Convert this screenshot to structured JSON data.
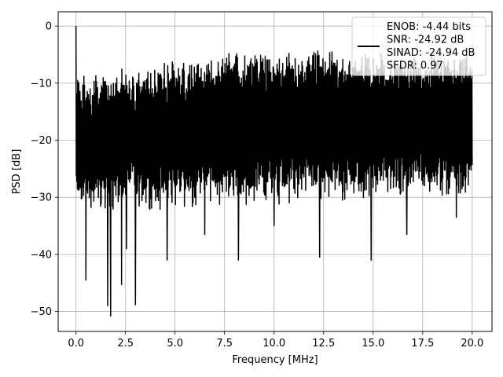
{
  "chart_data": {
    "type": "line",
    "title": "",
    "xlabel": "Frequency [MHz]",
    "ylabel": "PSD [dB]",
    "xlim": [
      -0.9,
      21.0
    ],
    "ylim": [
      -53.5,
      2.5
    ],
    "grid": true,
    "legend_position": "top-right",
    "xticks": [
      0.0,
      2.5,
      5.0,
      7.5,
      10.0,
      12.5,
      15.0,
      17.5,
      20.0
    ],
    "xtick_labels": [
      "0.0",
      "2.5",
      "5.0",
      "7.5",
      "10.0",
      "12.5",
      "15.0",
      "17.5",
      "20.0"
    ],
    "yticks": [
      0,
      -10,
      -20,
      -30,
      -40,
      -50
    ],
    "ytick_labels": [
      "0",
      "−10",
      "−20",
      "−30",
      "−40",
      "−50"
    ],
    "legend": {
      "lines": [
        "ENOB: -4.44 bits",
        "SNR: -24.92 dB",
        "SINAD: -24.94 dB",
        "SFDR: 0.97"
      ],
      "line_color": "#000000"
    },
    "series": [
      {
        "color": "#000000",
        "x_range": [
          0.0,
          20.0
        ],
        "description_values": {
          "peak_at_dc": 0.0,
          "typical_band_top": [
            -12,
            -5
          ],
          "typical_band_bottom": [
            -33,
            -22
          ]
        },
        "notable_dips": [
          {
            "x": 0.5,
            "y": -44.5
          },
          {
            "x": 1.6,
            "y": -49.0
          },
          {
            "x": 1.75,
            "y": -50.8
          },
          {
            "x": 2.3,
            "y": -45.3
          },
          {
            "x": 2.55,
            "y": -39.0
          },
          {
            "x": 3.0,
            "y": -48.8
          },
          {
            "x": 4.6,
            "y": -41.0
          },
          {
            "x": 6.5,
            "y": -36.5
          },
          {
            "x": 8.2,
            "y": -41.0
          },
          {
            "x": 10.0,
            "y": -35.0
          },
          {
            "x": 12.3,
            "y": -40.5
          },
          {
            "x": 14.9,
            "y": -41.0
          },
          {
            "x": 16.7,
            "y": -36.5
          },
          {
            "x": 19.2,
            "y": -33.5
          }
        ]
      }
    ]
  }
}
